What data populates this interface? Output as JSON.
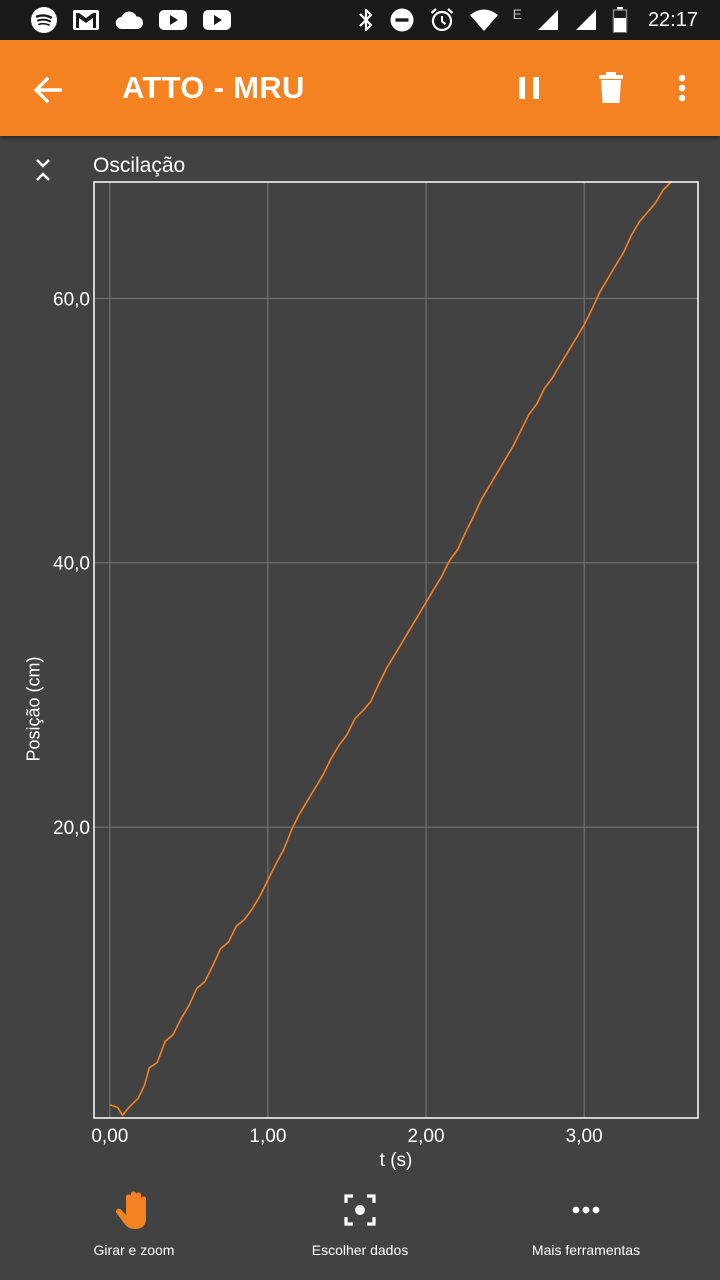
{
  "status_bar": {
    "time": "22:17",
    "network_letter": "E",
    "icons": [
      "spotify-icon",
      "gmail-icon",
      "cloud-icon",
      "youtube-icon",
      "youtube-icon",
      "bluetooth-icon",
      "do-not-disturb-icon",
      "alarm-icon",
      "wifi-icon",
      "signal-icon",
      "signal-icon",
      "battery-icon"
    ]
  },
  "app_bar": {
    "title": "ATTO - MRU",
    "icons": [
      "back-arrow-icon",
      "pause-icon",
      "delete-icon",
      "more-vert-icon"
    ],
    "color": "#f58220"
  },
  "chart": {
    "title": "Oscilação"
  },
  "chart_data": {
    "type": "line",
    "title": "Oscilação",
    "xlabel": "t (s)",
    "ylabel": "Posição (cm)",
    "xlim": [
      -0.1,
      3.72
    ],
    "ylim": [
      -2.0,
      68.8
    ],
    "x_ticks": [
      0,
      1,
      2,
      3
    ],
    "x_tick_labels": [
      "0,00",
      "1,00",
      "2,00",
      "3,00"
    ],
    "y_ticks": [
      20,
      40,
      60
    ],
    "y_tick_labels": [
      "20,0",
      "40,0",
      "60,0"
    ],
    "grid": true,
    "line_color": "#f58220",
    "series": [
      {
        "x": [
          0.0,
          0.05,
          0.08,
          0.12,
          0.18,
          0.22,
          0.25,
          0.3,
          0.35,
          0.4,
          0.45,
          0.5,
          0.55,
          0.6,
          0.65,
          0.7,
          0.75,
          0.8,
          0.85,
          0.9,
          0.95,
          1.0,
          1.05,
          1.1,
          1.15,
          1.2,
          1.25,
          1.3,
          1.35,
          1.4,
          1.45,
          1.5,
          1.55,
          1.6,
          1.65,
          1.7,
          1.75,
          1.8,
          1.85,
          1.9,
          1.95,
          2.0,
          2.05,
          2.1,
          2.15,
          2.2,
          2.25,
          2.3,
          2.35,
          2.4,
          2.45,
          2.5,
          2.55,
          2.6,
          2.65,
          2.7,
          2.75,
          2.8,
          2.85,
          2.9,
          2.95,
          3.0,
          3.05,
          3.1,
          3.15,
          3.2,
          3.25,
          3.3,
          3.35,
          3.4,
          3.45,
          3.5,
          3.55,
          3.6,
          3.65,
          3.7
        ],
        "values": [
          -1.0,
          -1.2,
          -1.8,
          -1.2,
          -0.5,
          0.5,
          1.8,
          2.2,
          3.8,
          4.3,
          5.5,
          6.5,
          7.8,
          8.3,
          9.5,
          10.8,
          11.3,
          12.5,
          13.0,
          13.8,
          14.8,
          16.0,
          17.2,
          18.3,
          19.8,
          21.0,
          22.0,
          23.0,
          24.0,
          25.2,
          26.2,
          27.0,
          28.2,
          28.8,
          29.5,
          30.8,
          32.0,
          33.0,
          34.0,
          35.0,
          36.0,
          37.0,
          38.0,
          39.0,
          40.2,
          41.0,
          42.3,
          43.5,
          44.8,
          45.8,
          46.8,
          47.8,
          48.8,
          50.0,
          51.2,
          52.0,
          53.2,
          54.0,
          55.0,
          56.0,
          57.0,
          58.0,
          59.2,
          60.5,
          61.5,
          62.5,
          63.5,
          64.8,
          65.8,
          66.5,
          67.2,
          68.2,
          68.8,
          69.5,
          70.3,
          71.0
        ]
      }
    ]
  },
  "toolbar": {
    "pan_label": "Girar e zoom",
    "select_label": "Escolher dados",
    "more_label": "Mais ferramentas",
    "pan_color": "#f58220"
  }
}
